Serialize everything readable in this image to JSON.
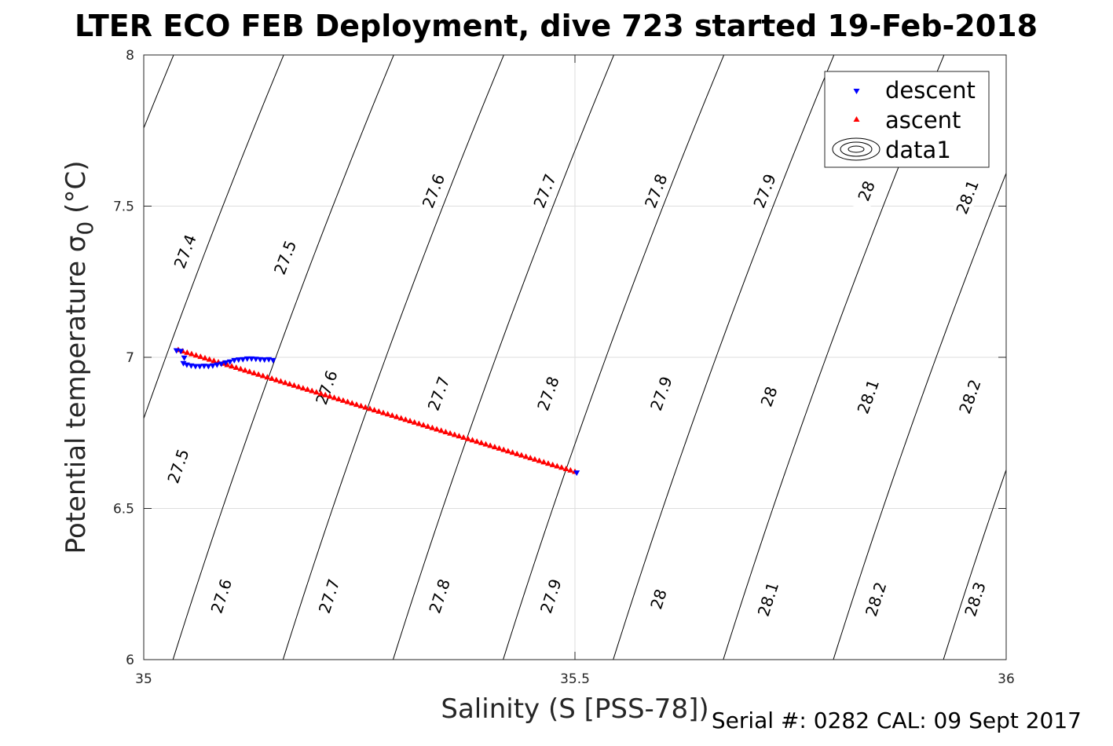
{
  "chart_data": {
    "type": "scatter",
    "title": "LTER ECO FEB Deployment, dive 723 started 19-Feb-2018",
    "xlabel": "Salinity (S [PSS-78])",
    "ylabel": "Potential temperature σ",
    "ylabel_subscript": "0",
    "ylabel_unit": "(°C)",
    "xlim": [
      35,
      36
    ],
    "ylim": [
      6,
      8
    ],
    "xticks": [
      "35",
      "35.5",
      "36"
    ],
    "yticks": [
      "6",
      "6.5",
      "7",
      "7.5",
      "8"
    ],
    "grid": true,
    "legend_position": "top-right",
    "legend": [
      "descent",
      "ascent",
      "data1"
    ],
    "series": [
      {
        "name": "descent",
        "marker": "triangle-down",
        "color": "#0000ff",
        "x": [
          35.038,
          35.043,
          35.047,
          35.046,
          35.05,
          35.055,
          35.06,
          35.065,
          35.07,
          35.075,
          35.08,
          35.085,
          35.09,
          35.095,
          35.1,
          35.105,
          35.11,
          35.115,
          35.12,
          35.125,
          35.13,
          35.135,
          35.14,
          35.145,
          35.15,
          35.502
        ],
        "y": [
          7.022,
          7.02,
          6.998,
          6.98,
          6.975,
          6.972,
          6.97,
          6.97,
          6.971,
          6.97,
          6.972,
          6.975,
          6.978,
          6.982,
          6.985,
          6.99,
          6.992,
          6.993,
          6.995,
          6.995,
          6.994,
          6.993,
          6.992,
          6.993,
          6.99,
          6.618
        ]
      },
      {
        "name": "ascent",
        "marker": "triangle-up",
        "color": "#ff0000",
        "x": [
          35.04,
          35.5
        ],
        "y": [
          7.025,
          6.622
        ],
        "n_points": 90
      }
    ],
    "contours": {
      "name": "data1",
      "color": "#000000",
      "levels": [
        "27.4",
        "27.5",
        "27.6",
        "27.7",
        "27.8",
        "27.9",
        "28",
        "28.1",
        "28.2",
        "28.3"
      ],
      "label_positions": {
        "27.4": [
          [
            35.048,
            7.35
          ]
        ],
        "27.5": [
          [
            35.164,
            7.33
          ],
          [
            35.04,
            6.64
          ]
        ],
        "27.6": [
          [
            35.336,
            7.55
          ],
          [
            35.212,
            6.9
          ],
          [
            35.09,
            6.21
          ]
        ],
        "27.7": [
          [
            35.465,
            7.55
          ],
          [
            35.342,
            6.88
          ],
          [
            35.215,
            6.21
          ]
        ],
        "27.8": [
          [
            35.594,
            7.55
          ],
          [
            35.469,
            6.88
          ],
          [
            35.343,
            6.21
          ]
        ],
        "27.9": [
          [
            35.72,
            7.55
          ],
          [
            35.6,
            6.88
          ],
          [
            35.472,
            6.21
          ]
        ],
        "28": [
          [
            35.838,
            7.55
          ],
          [
            35.725,
            6.87
          ],
          [
            35.597,
            6.2
          ]
        ],
        "28.1": [
          [
            35.955,
            7.53
          ],
          [
            35.84,
            6.87
          ],
          [
            35.724,
            6.2
          ]
        ],
        "28.2": [
          [
            35.958,
            6.87
          ],
          [
            35.849,
            6.2
          ]
        ],
        "28.3": [
          [
            35.964,
            6.2
          ]
        ]
      }
    }
  },
  "footer": {
    "serial": "Serial #: 0282  CAL: 09 Sept 2017"
  }
}
